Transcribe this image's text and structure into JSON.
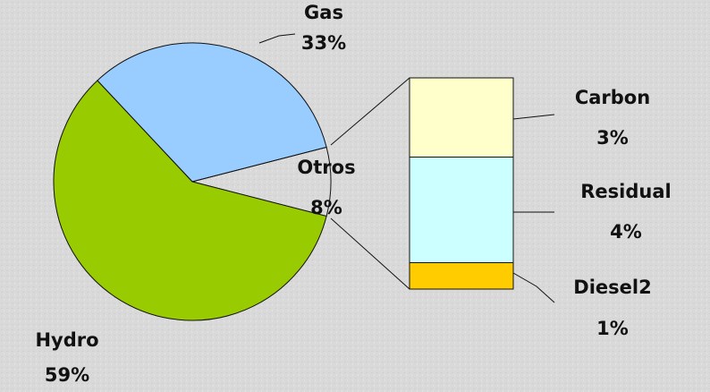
{
  "chart_data": {
    "type": "pie",
    "categories": [
      "Gas",
      "Otros",
      "Hydro"
    ],
    "values": [
      33,
      8,
      59
    ],
    "value_labels": [
      "33%",
      "8%",
      "59%"
    ],
    "colors": [
      "#99ccff",
      "none",
      "#99cc00"
    ],
    "bar": {
      "categories": [
        "Carbon",
        "Residual",
        "Diesel2"
      ],
      "values": [
        3,
        4,
        1
      ],
      "value_labels": [
        "3%",
        "4%",
        "1%"
      ],
      "colors": [
        "#ffffcc",
        "#ccffff",
        "#ffcc00"
      ]
    }
  }
}
